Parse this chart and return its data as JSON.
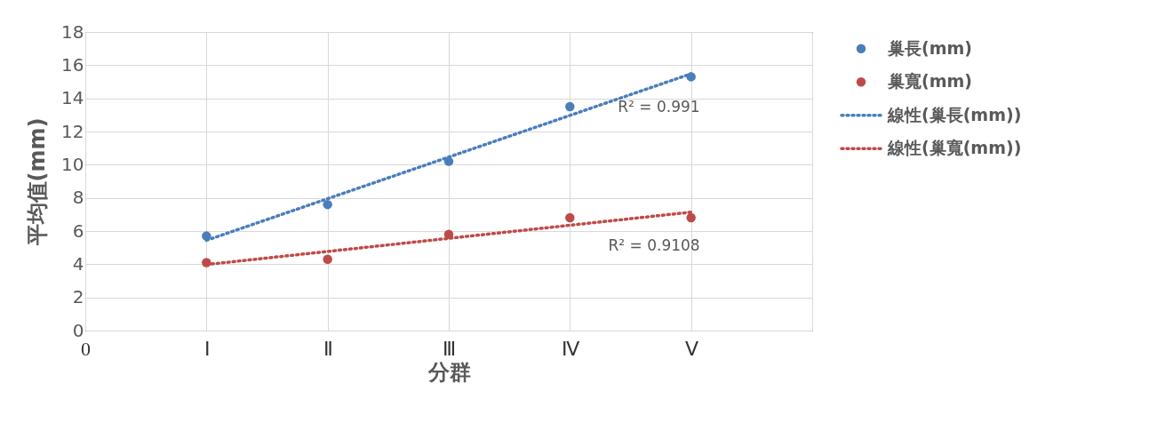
{
  "chart_data": {
    "type": "scatter",
    "xlabel": "分群",
    "ylabel": "平均值(mm)",
    "categories": [
      "0",
      "Ⅰ",
      "Ⅱ",
      "Ⅲ",
      "Ⅳ",
      "Ⅴ",
      null
    ],
    "ylim": [
      0,
      18
    ],
    "yticks": [
      0,
      2,
      4,
      6,
      8,
      10,
      12,
      14,
      16,
      18
    ],
    "series": [
      {
        "name": "巢長(mm)",
        "color": "#4a7ebb",
        "values": [
          null,
          5.7,
          7.6,
          10.2,
          13.5,
          15.3,
          null
        ],
        "marker": "circle"
      },
      {
        "name": "巢寬(mm)",
        "color": "#be4b48",
        "values": [
          null,
          4.1,
          4.3,
          5.8,
          6.8,
          6.8,
          null
        ],
        "marker": "circle"
      },
      {
        "name": "線性(巢長(mm))",
        "type": "line",
        "color": "#4a7ebb",
        "values": [
          null,
          5.44,
          7.95,
          10.46,
          12.97,
          15.48,
          null
        ],
        "line_style": "dotted",
        "marker": "none"
      },
      {
        "name": "線性(巢寬(mm))",
        "type": "line",
        "color": "#be4b48",
        "values": [
          null,
          3.98,
          4.77,
          5.56,
          6.35,
          7.14,
          null
        ],
        "line_style": "dotted",
        "marker": "none"
      }
    ],
    "annotations": [
      "R² = 0.991",
      "R² = 0.9108"
    ],
    "grid": true,
    "legend": "right"
  }
}
